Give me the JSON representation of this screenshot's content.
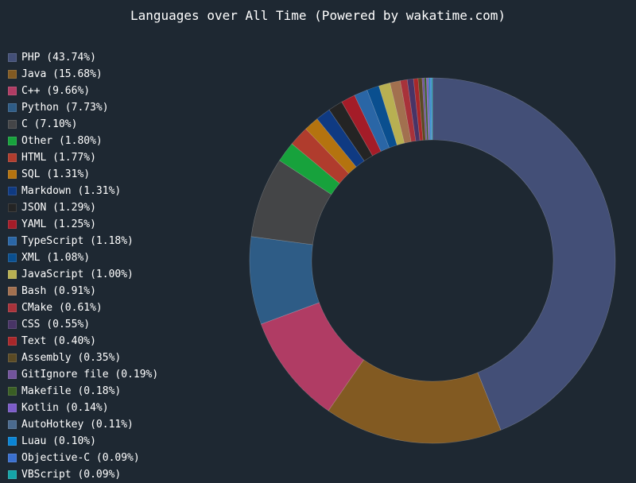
{
  "chart_data": {
    "type": "pie",
    "style": "donut",
    "title": "Languages over All Time (Powered by wakatime.com)",
    "legend_position": "left",
    "slices": [
      {
        "label": "PHP",
        "value": 43.74,
        "color": "#434f77"
      },
      {
        "label": "Java",
        "value": 15.68,
        "color": "#825a22"
      },
      {
        "label": "C++",
        "value": 9.66,
        "color": "#b03c64"
      },
      {
        "label": "Python",
        "value": 7.73,
        "color": "#2e5c86"
      },
      {
        "label": "C",
        "value": 7.1,
        "color": "#444547"
      },
      {
        "label": "Other",
        "value": 1.8,
        "color": "#17a23c"
      },
      {
        "label": "HTML",
        "value": 1.77,
        "color": "#b03c2d"
      },
      {
        "label": "SQL",
        "value": 1.31,
        "color": "#b4730f"
      },
      {
        "label": "Markdown",
        "value": 1.31,
        "color": "#0f3a82"
      },
      {
        "label": "JSON",
        "value": 1.29,
        "color": "#242424"
      },
      {
        "label": "YAML",
        "value": 1.25,
        "color": "#a41c28"
      },
      {
        "label": "TypeScript",
        "value": 1.18,
        "color": "#2a66a6"
      },
      {
        "label": "XML",
        "value": 1.08,
        "color": "#0a4f8f"
      },
      {
        "label": "JavaScript",
        "value": 1.0,
        "color": "#b8b052"
      },
      {
        "label": "Bash",
        "value": 0.91,
        "color": "#a2704f"
      },
      {
        "label": "CMake",
        "value": 0.61,
        "color": "#a8323a"
      },
      {
        "label": "CSS",
        "value": 0.55,
        "color": "#483466"
      },
      {
        "label": "Text",
        "value": 0.4,
        "color": "#a8272a"
      },
      {
        "label": "Assembly",
        "value": 0.35,
        "color": "#5a4a24"
      },
      {
        "label": "GitIgnore file",
        "value": 0.19,
        "color": "#72549c"
      },
      {
        "label": "Makefile",
        "value": 0.18,
        "color": "#3a5e24"
      },
      {
        "label": "Kotlin",
        "value": 0.14,
        "color": "#7c5cc8"
      },
      {
        "label": "AutoHotkey",
        "value": 0.11,
        "color": "#4a6a8e"
      },
      {
        "label": "Luau",
        "value": 0.1,
        "color": "#0a84d4"
      },
      {
        "label": "Objective-C",
        "value": 0.09,
        "color": "#3a70d0"
      },
      {
        "label": "VBScript",
        "value": 0.09,
        "color": "#15a4a8"
      }
    ]
  }
}
